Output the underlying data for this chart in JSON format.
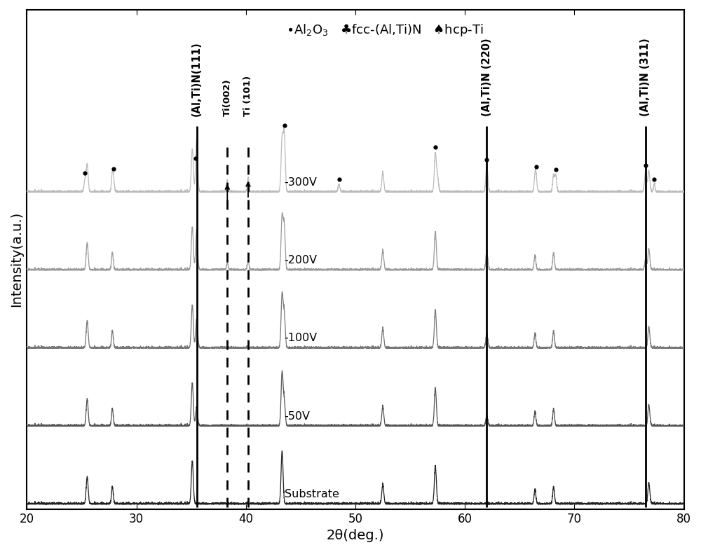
{
  "xlabel": "2θ(deg.)",
  "ylabel": "Intensity(a.u.)",
  "xlim": [
    20,
    80
  ],
  "ylim": [
    -0.05,
    5.2
  ],
  "x_ticks": [
    20,
    30,
    40,
    50,
    60,
    70,
    80
  ],
  "curve_labels": [
    "Substrate",
    "-50V",
    "-100V",
    "-200V",
    "-300V"
  ],
  "offsets": [
    0.0,
    0.82,
    1.64,
    2.46,
    3.28
  ],
  "solid_vlines": [
    35.5,
    62.0,
    76.5
  ],
  "dashed_vlines": [
    38.3,
    40.2
  ],
  "rotated_labels": [
    {
      "text": "(Al,Ti)N(111)",
      "x": 35.5
    },
    {
      "text": "Ti(002)",
      "x": 38.3
    },
    {
      "text": "Ti (101)",
      "x": 40.2
    },
    {
      "text": "(Al,Ti)N (220)",
      "x": 62.0
    },
    {
      "text": "(Al,Ti)N (311)",
      "x": 76.5
    }
  ],
  "legend_text": "•Al₂O₃   ♣fcc-(Al,Ti)N   ♠hcp-Ti",
  "fig_width": 10.0,
  "fig_height": 7.88,
  "dpi": 100
}
